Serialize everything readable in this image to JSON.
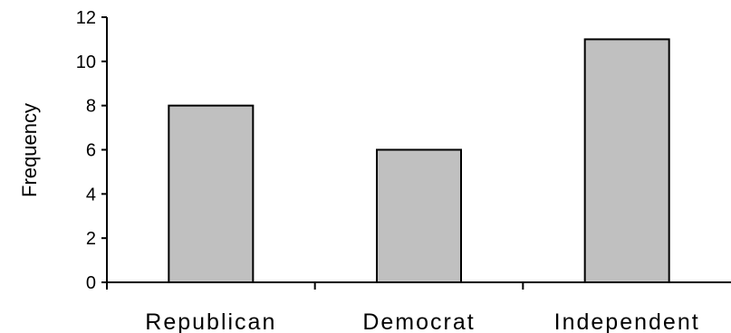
{
  "chart_data": {
    "type": "bar",
    "title": "",
    "xlabel": "",
    "ylabel": "Frequency",
    "categories": [
      "Republican",
      "Democrat",
      "Independent"
    ],
    "values": [
      8,
      6,
      11
    ],
    "ylim": [
      0,
      12
    ],
    "yticks": [
      0,
      2,
      4,
      6,
      8,
      10,
      12
    ],
    "grid": false,
    "legend": "none",
    "colors": {
      "bar_fill": "#c0c0c0",
      "bar_stroke": "#000000",
      "axis": "#000000"
    }
  }
}
